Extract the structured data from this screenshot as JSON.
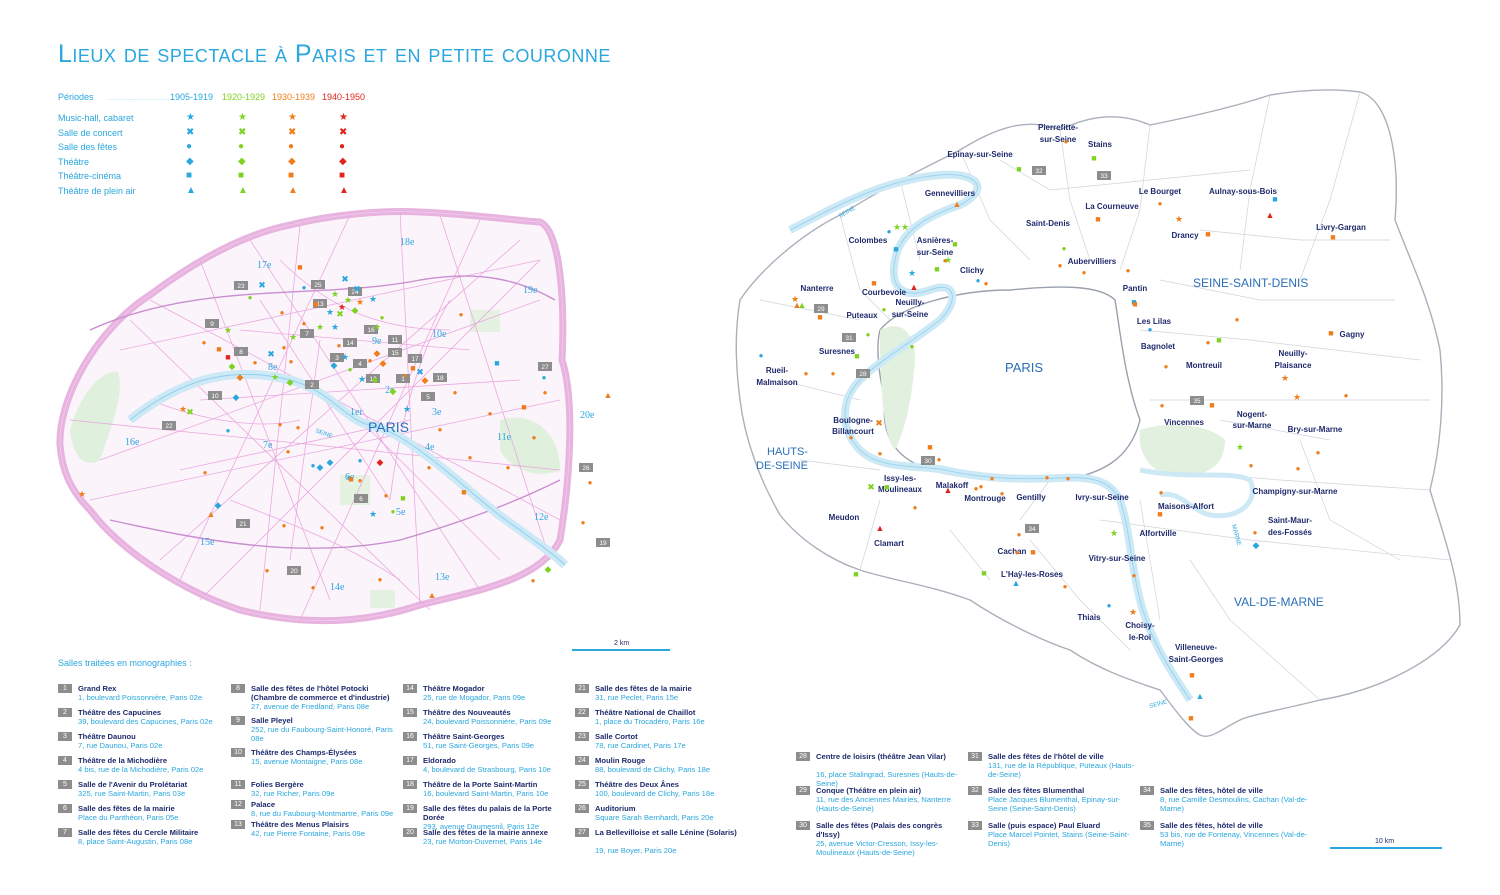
{
  "title": "Lieux de spectacle à Paris et en petite couronne",
  "legend": {
    "periods_label": "Périodes",
    "periods": [
      {
        "label": "1905-1919",
        "color": "#2aa7de"
      },
      {
        "label": "1920-1929",
        "color": "#7ed321"
      },
      {
        "label": "1930-1939",
        "color": "#f07d1a"
      },
      {
        "label": "1940-1950",
        "color": "#e0241b"
      }
    ],
    "types": [
      {
        "label": "Music-hall, cabaret",
        "symbol": "★"
      },
      {
        "label": "Salle de concert",
        "symbol": "✖"
      },
      {
        "label": "Salle des fêtes",
        "symbol": "●"
      },
      {
        "label": "Théâtre",
        "symbol": "◆"
      },
      {
        "label": "Théâtre-cinéma",
        "symbol": "■"
      },
      {
        "label": "Théâtre de plein air",
        "symbol": "▲"
      }
    ]
  },
  "paris_map": {
    "center_label": "PARIS",
    "seine_label": "SEINE",
    "arrondissements": [
      "1er",
      "2e",
      "3e",
      "4e",
      "5e",
      "6e",
      "7e",
      "8e",
      "9e",
      "10e",
      "11e",
      "12e",
      "13e",
      "14e",
      "15e",
      "16e",
      "17e",
      "18e",
      "19e",
      "20e"
    ],
    "numbered_boxes": [
      "1",
      "2",
      "3",
      "4",
      "5",
      "6",
      "7",
      "8",
      "9",
      "10",
      "11",
      "12",
      "13",
      "14",
      "15",
      "16",
      "17",
      "18",
      "19",
      "20",
      "21",
      "22",
      "23",
      "24",
      "25",
      "26",
      "27"
    ],
    "scale_label": "2 km"
  },
  "suburb_map": {
    "departments": [
      "HAUTS-DE-SEINE",
      "SEINE-SAINT-DENIS",
      "VAL-DE-MARNE"
    ],
    "paris_label": "PARIS",
    "seine_labels": [
      "SEINE",
      "SEINE"
    ],
    "marne_label": "MARNE",
    "communes": [
      "Epinay-sur-Seine",
      "Pierrefitte-sur-Seine",
      "Stains",
      "Aulnay-sous-Bois",
      "Gennevilliers",
      "Le Bourget",
      "La Courneuve",
      "Saint-Denis",
      "Drancy",
      "Livry-Gargan",
      "Colombes",
      "Asnières-sur-Seine",
      "Aubervilliers",
      "Clichy",
      "Nanterre",
      "Courbevoie",
      "Pantin",
      "Neuilly-sur-Seine",
      "Puteaux",
      "Les Lilas",
      "Bagnolet",
      "Gagny",
      "Suresnes",
      "Neuilly-Plaisance",
      "Rueil-Malmaison",
      "Montreuil",
      "Nogent-sur-Marne",
      "Vincennes",
      "Bry-sur-Marne",
      "Boulogne-Billancourt",
      "Issy-les-Moulineaux",
      "Malakoff",
      "Montrouge",
      "Gentilly",
      "Ivry-sur-Seine",
      "Maisons-Alfort",
      "Champigny-sur-Marne",
      "Meudon",
      "Clamart",
      "Alfortville",
      "Saint-Maur-des-Fossés",
      "Cachan",
      "Vitry-sur-Seine",
      "L'Haÿ-les-Roses",
      "Thiais",
      "Choisy-le-Roi",
      "Villeneuve-Saint-Georges"
    ],
    "numbered_boxes": [
      "28",
      "29",
      "30",
      "31",
      "32",
      "33",
      "34",
      "35"
    ],
    "scale_label": "10 km"
  },
  "monographs_heading": "Salles traitées en monographies :",
  "monographs": [
    {
      "num": "1",
      "name": "Grand Rex",
      "address": "1, boulevard Poissonnière, Paris 02e"
    },
    {
      "num": "2",
      "name": "Théâtre des Capucines",
      "address": "39, boulevard des Capucines, Paris 02e"
    },
    {
      "num": "3",
      "name": "Théâtre Daunou",
      "address": "7, rue Daunou, Paris 02e"
    },
    {
      "num": "4",
      "name": "Théâtre de la Michodière",
      "address": "4 bis, rue de la Michodière, Paris 02e"
    },
    {
      "num": "5",
      "name": "Salle de l'Avenir du Prolétariat",
      "address": "325, rue Saint-Martin, Paris 03e"
    },
    {
      "num": "6",
      "name": "Salle des fêtes de la mairie",
      "address": "Place du Panthéon, Paris 05e"
    },
    {
      "num": "7",
      "name": "Salle des fêtes du Cercle Militaire",
      "address": "8, place Saint-Augustin, Paris 08e"
    },
    {
      "num": "8",
      "name": "Salle des fêtes de l'hôtel Potocki (Chambre de commerce et d'industrie)",
      "address": "27, avenue de Friedland, Paris 08e"
    },
    {
      "num": "9",
      "name": "Salle Pleyel",
      "address": "252, rue du Faubourg-Saint-Honoré, Paris 08e"
    },
    {
      "num": "10",
      "name": "Théâtre des Champs-Élysées",
      "address": "15, avenue Montaigne, Paris 08e"
    },
    {
      "num": "11",
      "name": "Folies Bergère",
      "address": "32, rue Richer, Paris 09e"
    },
    {
      "num": "12",
      "name": "Palace",
      "address": "8, rue du Faubourg-Montmartre, Paris 09e"
    },
    {
      "num": "13",
      "name": "Théâtre des Menus Plaisirs",
      "address": "42, rue Pierre Fontaine, Paris 09e"
    },
    {
      "num": "14",
      "name": "Théâtre Mogador",
      "address": "25, rue de Mogador, Paris 09e"
    },
    {
      "num": "15",
      "name": "Théâtre des Nouveautés",
      "address": "24, boulevard Poissonnière, Paris 09e"
    },
    {
      "num": "16",
      "name": "Théâtre Saint-Georges",
      "address": "51, rue Saint-Georges, Paris 09e"
    },
    {
      "num": "17",
      "name": "Eldorado",
      "address": "4, boulevard de Strasbourg, Paris 10e"
    },
    {
      "num": "18",
      "name": "Théâtre de la Porte Saint-Martin",
      "address": "16, boulevard Saint-Martin, Paris 10e"
    },
    {
      "num": "19",
      "name": "Salle des fêtes du palais de la Porte Dorée",
      "address": "293, avenue Daumesnil, Paris 12e"
    },
    {
      "num": "20",
      "name": "Salle des fêtes de la mairie annexe",
      "address": "23, rue Morton-Duvernet, Paris 14e"
    },
    {
      "num": "21",
      "name": "Salle des fêtes de la mairie",
      "address": "31, rue Peclet, Paris 15e"
    },
    {
      "num": "22",
      "name": "Théâtre National de Chaillot",
      "address": "1, place du Trocadéro, Paris 16e"
    },
    {
      "num": "23",
      "name": "Salle Cortot",
      "address": "78, rue Cardinet, Paris 17e"
    },
    {
      "num": "24",
      "name": "Moulin Rouge",
      "address": "88, boulevard de Clichy, Paris 18e"
    },
    {
      "num": "25",
      "name": "Théâtre des Deux Ânes",
      "address": "100, boulevard de Clichy, Paris 18e"
    },
    {
      "num": "26",
      "name": "Auditorium",
      "address": "Square Sarah Bernhardt, Paris 20e"
    },
    {
      "num": "27",
      "name": "La Bellevilloise et salle Lénine (Solaris)",
      "address": "19, rue Boyer, Paris 20e"
    },
    {
      "num": "28",
      "name": "Centre de loisirs (théâtre Jean Vilar)",
      "address": "16, place Stalingrad, Suresnes (Hauts-de-Seine)"
    },
    {
      "num": "29",
      "name": "Conque (Théâtre en plein air)",
      "address": "11, rue des Anciennes Mairies, Nanterre (Hauts-de-Seine)"
    },
    {
      "num": "30",
      "name": "Salle des fêtes (Palais des congrès d'Issy)",
      "address": "25, avenue Victor-Cresson, Issy-les-Moulineaux (Hauts-de-Seine)"
    },
    {
      "num": "31",
      "name": "Salle des fêtes de l'hôtel de ville",
      "address": "131, rue de la République, Puteaux (Hauts-de-Seine)"
    },
    {
      "num": "32",
      "name": "Salle des fêtes Blumenthal",
      "address": "Place Jacques Blumenthal, Epinay-sur-Seine (Seine-Saint-Denis)"
    },
    {
      "num": "33",
      "name": "Salle (puis espace) Paul Eluard",
      "address": "Place Marcel Pointet, Stains (Seine-Saint-Denis)"
    },
    {
      "num": "34",
      "name": "Salle des fêtes, hôtel de ville",
      "address": "8, rue Camille Desmoulins, Cachan (Val-de-Marne)"
    },
    {
      "num": "35",
      "name": "Salle des fêtes, hôtel de ville",
      "address": "53 bis, rue de Fontenay, Vincennes (Val-de-Marne)"
    }
  ]
}
